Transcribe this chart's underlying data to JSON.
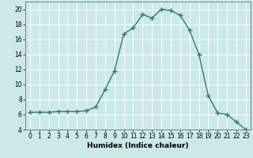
{
  "title": "",
  "xlabel": "Humidex (Indice chaleur)",
  "x_values": [
    0,
    1,
    2,
    3,
    4,
    5,
    6,
    7,
    8,
    9,
    10,
    11,
    12,
    13,
    14,
    15,
    16,
    17,
    18,
    19,
    20,
    21,
    22,
    23
  ],
  "y_values": [
    6.3,
    6.3,
    6.3,
    6.4,
    6.4,
    6.4,
    6.5,
    7.0,
    9.3,
    11.8,
    16.7,
    17.5,
    19.3,
    18.8,
    20.0,
    19.8,
    19.2,
    17.2,
    14.0,
    8.5,
    6.2,
    6.0,
    5.0,
    4.0
  ],
  "line_color": "#2e7d6e",
  "marker": "+",
  "marker_size": 4,
  "marker_linewidth": 1.0,
  "linewidth": 1.0,
  "xlim": [
    -0.5,
    23.5
  ],
  "ylim": [
    4,
    21
  ],
  "yticks": [
    4,
    6,
    8,
    10,
    12,
    14,
    16,
    18,
    20
  ],
  "xticks": [
    0,
    1,
    2,
    3,
    4,
    5,
    6,
    7,
    8,
    9,
    10,
    11,
    12,
    13,
    14,
    15,
    16,
    17,
    18,
    19,
    20,
    21,
    22,
    23
  ],
  "background_color": "#cce8e8",
  "grid_color": "#ffffff",
  "xlabel_fontsize": 6.5,
  "tick_fontsize": 5.5
}
